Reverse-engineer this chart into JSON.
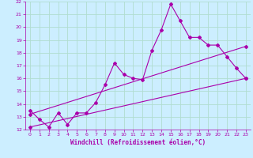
{
  "xlabel": "Windchill (Refroidissement éolien,°C)",
  "ylabel": "",
  "bg_color": "#cceeff",
  "grid_color": "#b0ddd0",
  "line_color": "#aa00aa",
  "xlim": [
    -0.5,
    23.5
  ],
  "ylim": [
    12,
    22
  ],
  "yticks": [
    12,
    13,
    14,
    15,
    16,
    17,
    18,
    19,
    20,
    21,
    22
  ],
  "xticks": [
    0,
    1,
    2,
    3,
    4,
    5,
    6,
    7,
    8,
    9,
    10,
    11,
    12,
    13,
    14,
    15,
    16,
    17,
    18,
    19,
    20,
    21,
    22,
    23
  ],
  "line1_x": [
    0,
    1,
    2,
    3,
    4,
    5,
    6,
    7,
    8,
    9,
    10,
    11,
    12,
    13,
    14,
    15,
    16,
    17,
    18,
    19,
    20,
    21,
    22,
    23
  ],
  "line1_y": [
    13.5,
    12.8,
    12.2,
    13.3,
    12.4,
    13.3,
    13.3,
    14.1,
    15.5,
    17.2,
    16.3,
    16.0,
    15.9,
    18.2,
    19.8,
    21.8,
    20.5,
    19.2,
    19.2,
    18.6,
    18.6,
    17.7,
    16.8,
    16.0
  ],
  "line2_x": [
    0,
    23
  ],
  "line2_y": [
    13.2,
    18.5
  ],
  "line3_x": [
    0,
    23
  ],
  "line3_y": [
    12.2,
    16.0
  ]
}
